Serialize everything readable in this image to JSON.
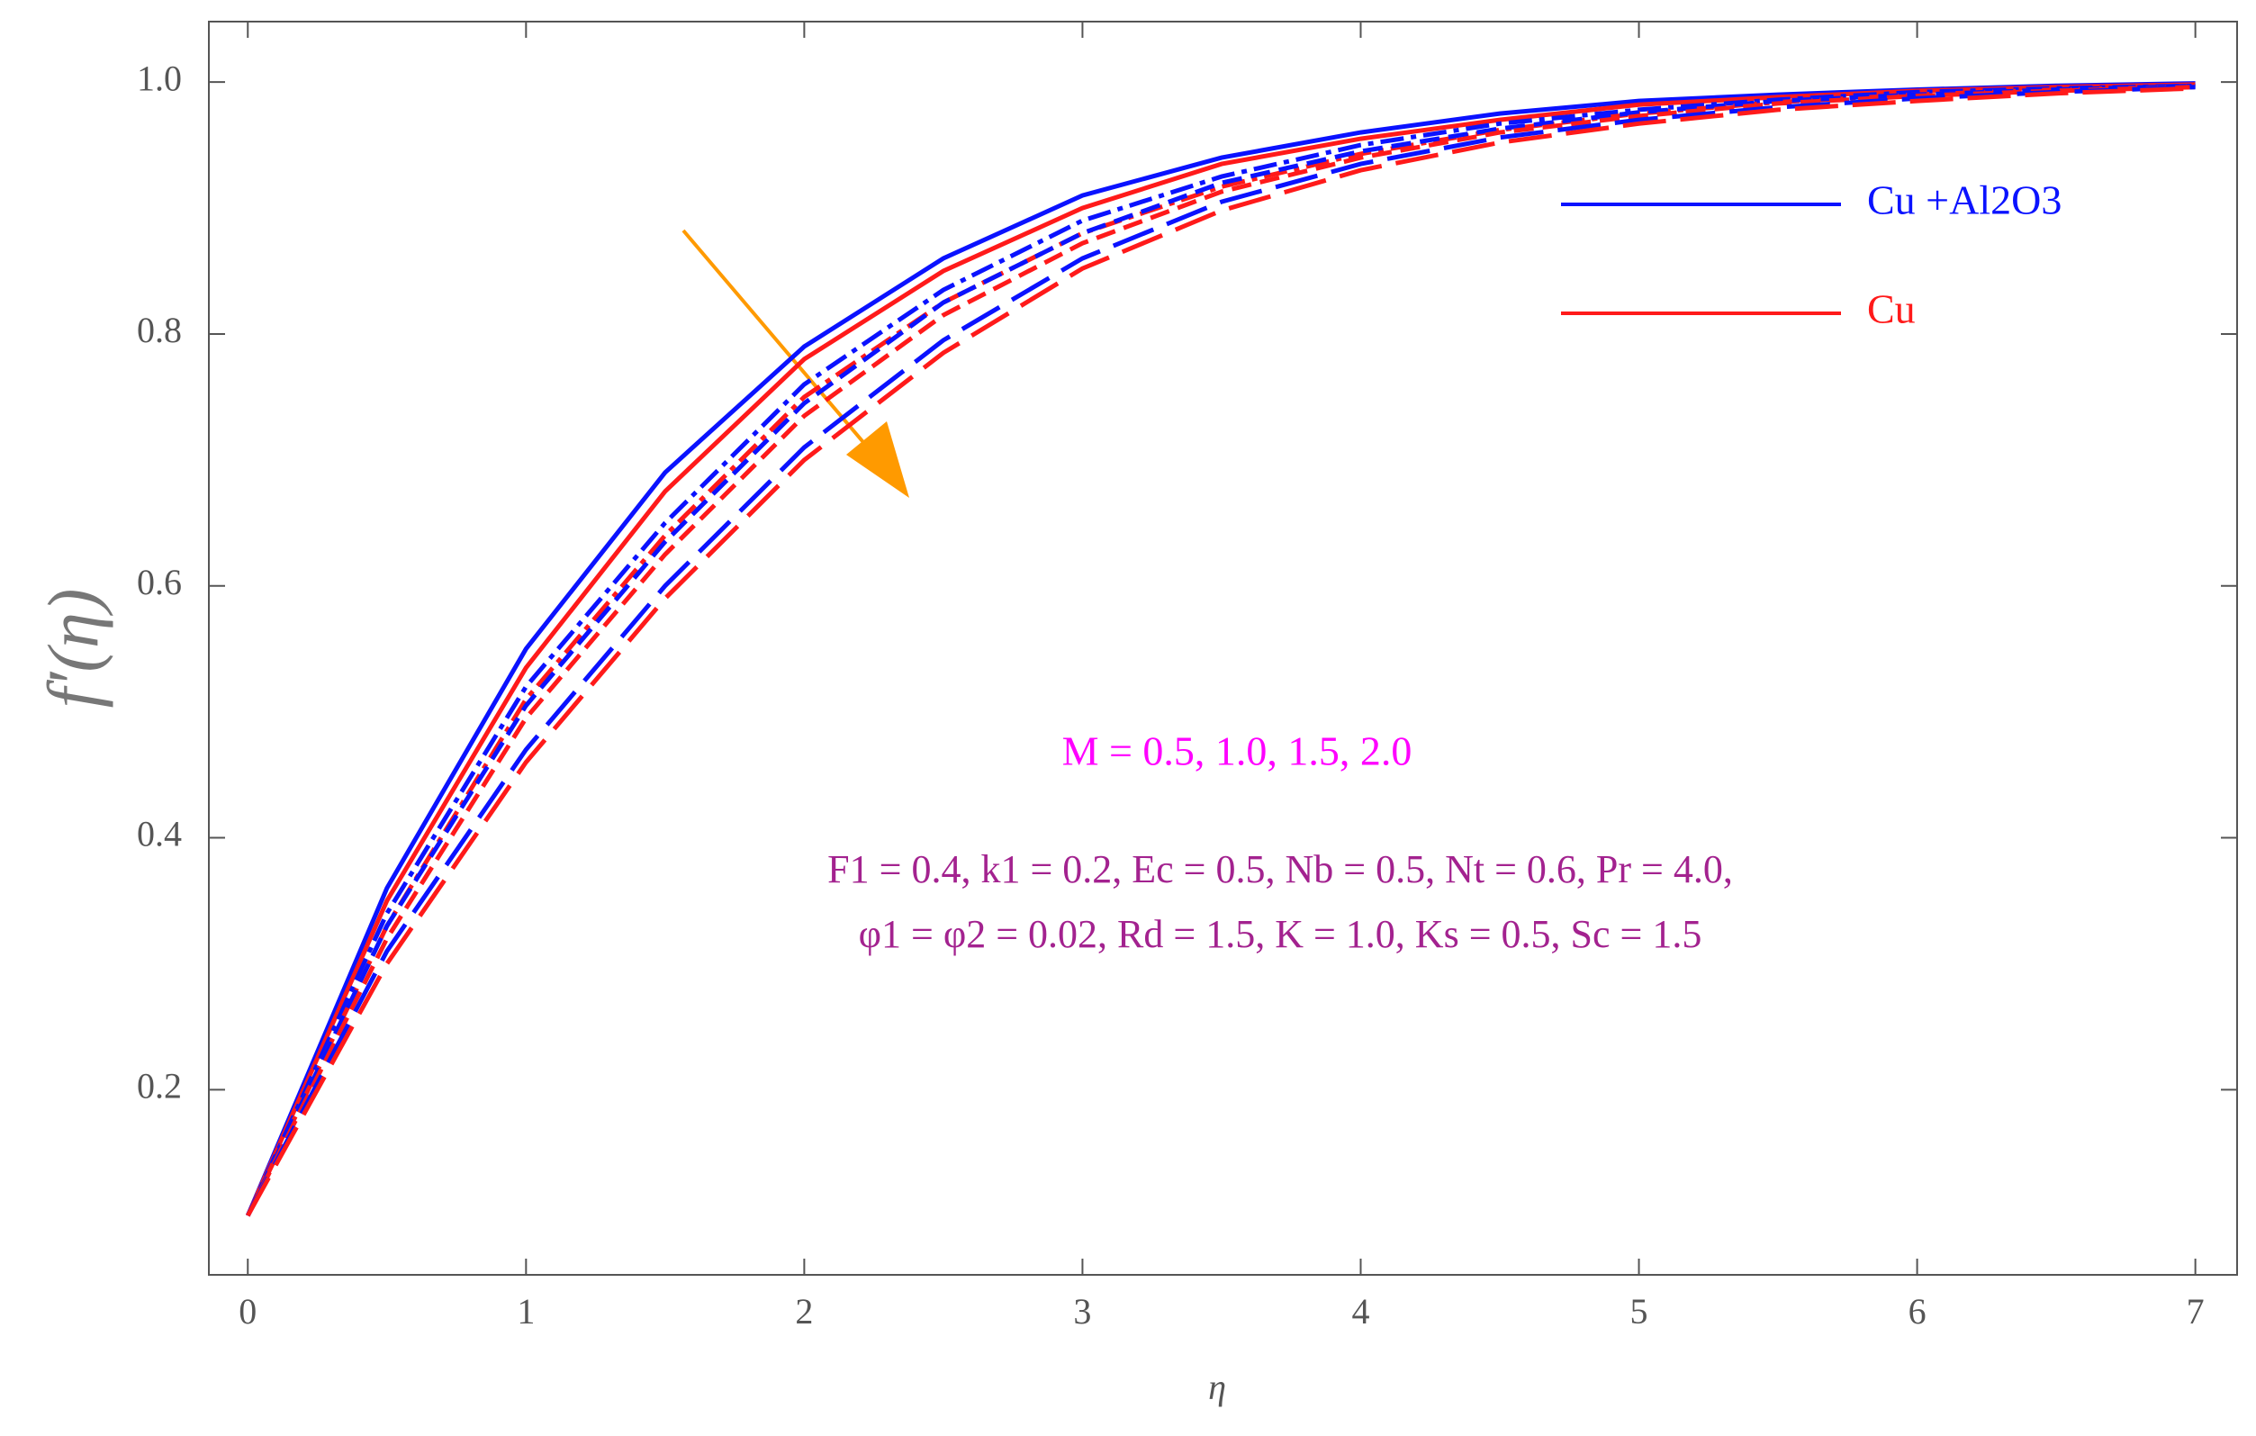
{
  "chart_data": {
    "type": "line",
    "x_label": "η",
    "y_label": "f′(η)",
    "x": [
      0,
      0.5,
      1,
      1.5,
      2,
      2.5,
      3,
      3.5,
      4,
      4.5,
      5,
      5.5,
      6,
      6.5,
      7
    ],
    "xlim": [
      -0.14,
      7.15
    ],
    "ylim": [
      0.053,
      1.048
    ],
    "xticks": [
      0,
      1,
      2,
      3,
      4,
      5,
      6,
      7
    ],
    "yticks": [
      0.2,
      0.4,
      0.6,
      0.8,
      {
        "value": 1,
        "label": "1.0"
      }
    ],
    "legend": "upper right",
    "series": [
      {
        "name": "Cu +Al2O3",
        "color": "#0a12ff",
        "dash": "solid",
        "values": [
          0.1,
          0.36,
          0.55,
          0.69,
          0.79,
          0.86,
          0.91,
          0.94,
          0.96,
          0.975,
          0.985,
          0.99,
          0.994,
          0.997,
          0.999
        ]
      },
      {
        "name": "Cu",
        "color": "#ff1a1a",
        "dash": "solid",
        "values": [
          0.1,
          0.35,
          0.535,
          0.675,
          0.78,
          0.85,
          0.9,
          0.935,
          0.955,
          0.97,
          0.982,
          0.988,
          0.993,
          0.996,
          0.998
        ]
      },
      {
        "color": "#0a12ff",
        "dash": "dashdot",
        "values": [
          0.1,
          0.34,
          0.52,
          0.65,
          0.76,
          0.835,
          0.89,
          0.925,
          0.95,
          0.967,
          0.978,
          0.986,
          0.992,
          0.995,
          0.997
        ]
      },
      {
        "color": "#ff1a1a",
        "dash": "dashdot",
        "values": [
          0.1,
          0.33,
          0.51,
          0.64,
          0.75,
          0.825,
          0.88,
          0.917,
          0.943,
          0.962,
          0.975,
          0.984,
          0.99,
          0.994,
          0.996
        ]
      },
      {
        "color": "#0a12ff",
        "dash": "dashed",
        "values": [
          0.1,
          0.33,
          0.505,
          0.635,
          0.745,
          0.825,
          0.88,
          0.92,
          0.945,
          0.963,
          0.976,
          0.985,
          0.99,
          0.994,
          0.997
        ]
      },
      {
        "color": "#ff1a1a",
        "dash": "dashed",
        "values": [
          0.1,
          0.32,
          0.495,
          0.625,
          0.735,
          0.815,
          0.872,
          0.913,
          0.94,
          0.96,
          0.973,
          0.983,
          0.989,
          0.993,
          0.996
        ]
      },
      {
        "color": "#0a12ff",
        "dash": "longdash",
        "values": [
          0.1,
          0.31,
          0.47,
          0.6,
          0.71,
          0.795,
          0.86,
          0.905,
          0.935,
          0.956,
          0.97,
          0.98,
          0.987,
          0.992,
          0.996
        ]
      },
      {
        "color": "#ff1a1a",
        "dash": "longdash",
        "values": [
          0.1,
          0.3,
          0.46,
          0.59,
          0.7,
          0.785,
          0.852,
          0.898,
          0.93,
          0.952,
          0.967,
          0.978,
          0.985,
          0.991,
          0.995
        ]
      }
    ],
    "annotations": [
      {
        "text": "M = 0.5, 1.0, 1.5, 2.0",
        "color": "#ff00ff"
      },
      {
        "text": "F1 = 0.4, k1 = 0.2, Ec = 0.5, Nb = 0.5, Nt = 0.6, Pr = 4.0,",
        "color": "#a3228f"
      },
      {
        "text": "φ1 = φ2 = 0.02, Rd = 1.5, K = 1.0, Ks = 0.5, Sc = 1.5",
        "color": "#a3228f"
      }
    ]
  }
}
